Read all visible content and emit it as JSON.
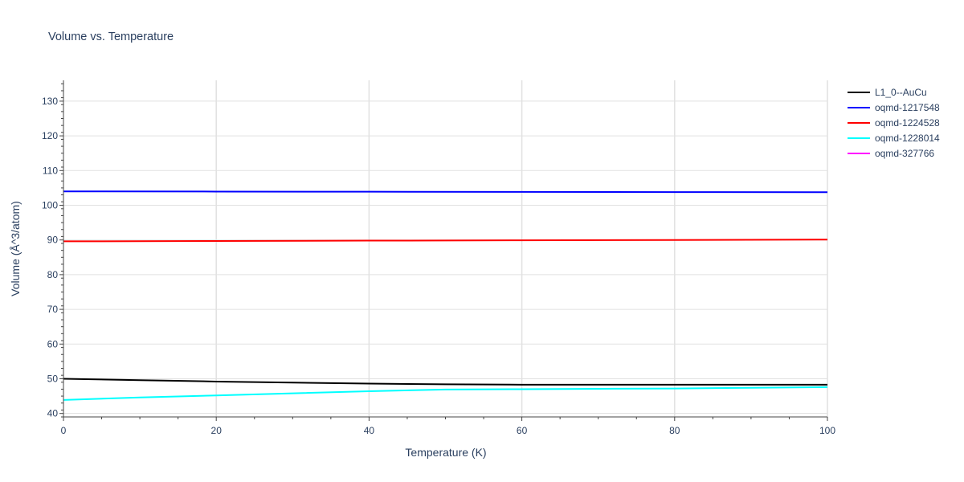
{
  "chart_data": {
    "type": "line",
    "title": "Volume vs. Temperature",
    "xlabel": "Temperature (K)",
    "ylabel": "Volume (Å^3/atom)",
    "xlim": [
      0,
      100
    ],
    "ylim": [
      39,
      136
    ],
    "xticks": [
      0,
      20,
      40,
      60,
      80,
      100
    ],
    "yticks": [
      40,
      50,
      60,
      70,
      80,
      90,
      100,
      110,
      120,
      130
    ],
    "grid": true,
    "legend_position": "top-right",
    "series": [
      {
        "name": "L1_0--AuCu",
        "color": "#000000",
        "x": [
          0,
          10,
          20,
          30,
          40,
          50,
          60,
          70,
          80,
          90,
          100
        ],
        "y": [
          50.0,
          49.6,
          49.2,
          48.9,
          48.6,
          48.4,
          48.3,
          48.3,
          48.3,
          48.3,
          48.3
        ]
      },
      {
        "name": "oqmd-1217548",
        "color": "#0000ff",
        "x": [
          0,
          20,
          40,
          60,
          80,
          100
        ],
        "y": [
          104.0,
          103.95,
          103.9,
          103.85,
          103.8,
          103.75
        ]
      },
      {
        "name": "oqmd-1224528",
        "color": "#ff0000",
        "x": [
          0,
          20,
          40,
          60,
          80,
          100
        ],
        "y": [
          89.6,
          89.7,
          89.8,
          89.9,
          90.0,
          90.1
        ]
      },
      {
        "name": "oqmd-1228014",
        "color": "#00ffff",
        "x": [
          0,
          10,
          20,
          30,
          40,
          50,
          60,
          70,
          80,
          90,
          100
        ],
        "y": [
          43.9,
          44.6,
          45.2,
          45.8,
          46.4,
          46.9,
          47.0,
          47.1,
          47.2,
          47.4,
          47.6
        ]
      },
      {
        "name": "oqmd-327766",
        "color": "#ff00ff",
        "x": [],
        "y": []
      }
    ]
  }
}
